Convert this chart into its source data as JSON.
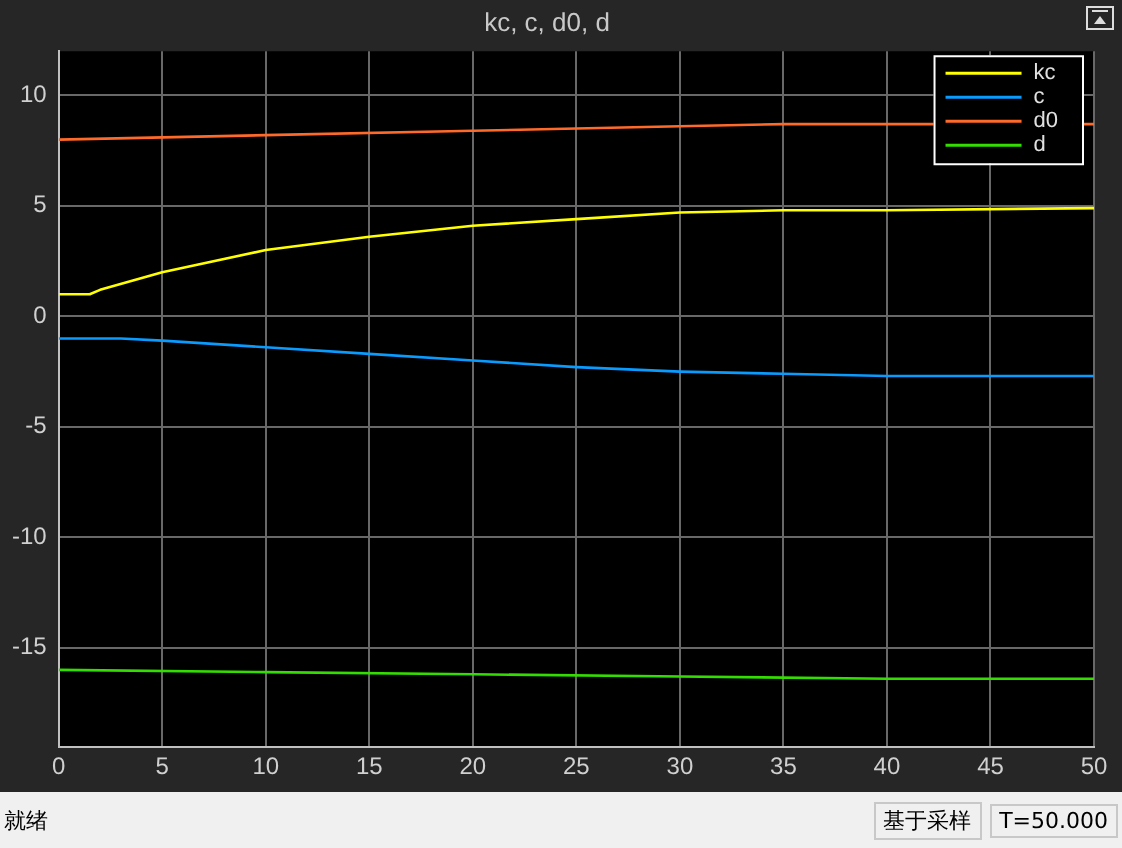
{
  "chart_data": {
    "type": "line",
    "title": "kc, c, d0, d",
    "xlim": [
      0,
      50
    ],
    "xticks": [
      0,
      5,
      10,
      15,
      20,
      25,
      30,
      35,
      40,
      45,
      50
    ],
    "ylim": [
      -19.5,
      12
    ],
    "yticks": [
      -15,
      -10,
      -5,
      0,
      5,
      10
    ],
    "grid": true,
    "legend": "top right",
    "marker": "none",
    "line_style": "solid",
    "series": [
      {
        "name": "kc",
        "color": "#ffff00",
        "x": [
          0,
          1.5,
          2,
          5,
          10,
          15,
          20,
          25,
          30,
          35,
          40,
          50
        ],
        "values": [
          1,
          1,
          1.2,
          2,
          3,
          3.6,
          4.1,
          4.4,
          4.7,
          4.8,
          4.8,
          4.9
        ]
      },
      {
        "name": "c",
        "color": "#0a9bff",
        "x": [
          0,
          3,
          5,
          10,
          15,
          20,
          25,
          30,
          35,
          40,
          45,
          50
        ],
        "values": [
          -1,
          -1,
          -1.1,
          -1.4,
          -1.7,
          -2,
          -2.3,
          -2.5,
          -2.6,
          -2.7,
          -2.7,
          -2.7
        ]
      },
      {
        "name": "d0",
        "color": "#ff6a2a",
        "x": [
          0,
          10,
          20,
          25,
          30,
          35,
          40,
          50
        ],
        "values": [
          8,
          8.2,
          8.4,
          8.5,
          8.6,
          8.7,
          8.7,
          8.7
        ]
      },
      {
        "name": "d",
        "color": "#33dd00",
        "x": [
          0,
          10,
          20,
          30,
          40,
          50
        ],
        "values": [
          -16,
          -16.1,
          -16.2,
          -16.3,
          -16.4,
          -16.4
        ]
      }
    ],
    "annotations": [
      "就绪",
      "基于采样",
      "T=50.000"
    ]
  }
}
